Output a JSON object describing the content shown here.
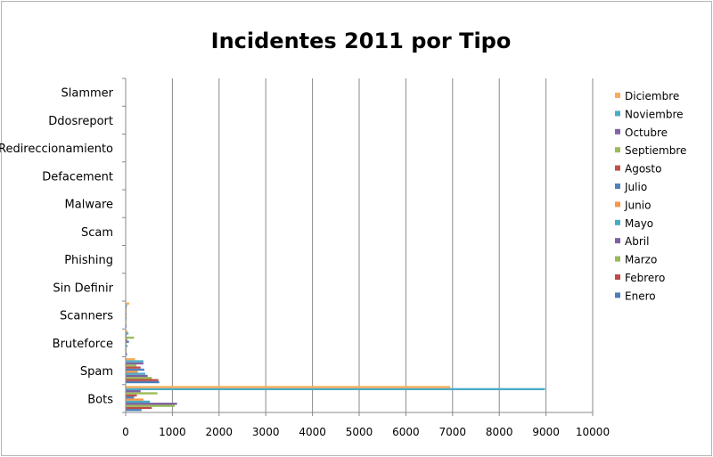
{
  "chart_data": {
    "type": "bar",
    "orientation": "horizontal",
    "title": "Incidentes 2011 por Tipo",
    "xlim": [
      0,
      10000
    ],
    "x_ticks": [
      "0",
      "1000",
      "2000",
      "3000",
      "4000",
      "5000",
      "6000",
      "7000",
      "8000",
      "9000",
      "10000"
    ],
    "grid": "vertical",
    "legend_position": "right",
    "categories": [
      "Bots",
      "Spam",
      "Bruteforce",
      "Scanners",
      "Sin Definir",
      "Phishing",
      "Scam",
      "Malware",
      "Defacement",
      "Redireccionamiento",
      "Ddosreport",
      "Slammer"
    ],
    "series": [
      {
        "name": "Enero",
        "color": "#4a7ebb",
        "values": [
          340,
          720,
          30,
          20,
          0,
          0,
          0,
          0,
          0,
          0,
          0,
          0
        ]
      },
      {
        "name": "Febrero",
        "color": "#be4b48",
        "values": [
          560,
          700,
          15,
          15,
          0,
          0,
          0,
          0,
          0,
          0,
          0,
          0
        ]
      },
      {
        "name": "Marzo",
        "color": "#98b954",
        "values": [
          1050,
          560,
          20,
          15,
          0,
          0,
          0,
          0,
          0,
          0,
          0,
          0
        ]
      },
      {
        "name": "Abril",
        "color": "#7d60a0",
        "values": [
          1100,
          470,
          15,
          15,
          0,
          0,
          0,
          0,
          0,
          0,
          0,
          0
        ]
      },
      {
        "name": "Mayo",
        "color": "#46aac5",
        "values": [
          520,
          420,
          40,
          20,
          0,
          0,
          0,
          0,
          0,
          0,
          0,
          0
        ]
      },
      {
        "name": "Junio",
        "color": "#f79646",
        "values": [
          380,
          260,
          20,
          20,
          0,
          0,
          0,
          0,
          0,
          0,
          0,
          0
        ]
      },
      {
        "name": "Julio",
        "color": "#4f81bd",
        "values": [
          180,
          400,
          70,
          20,
          0,
          0,
          0,
          0,
          0,
          0,
          0,
          0
        ]
      },
      {
        "name": "Agosto",
        "color": "#c0504d",
        "values": [
          240,
          320,
          30,
          15,
          0,
          0,
          0,
          0,
          0,
          0,
          0,
          0
        ]
      },
      {
        "name": "Septiembre",
        "color": "#9bbb59",
        "values": [
          680,
          230,
          180,
          20,
          0,
          0,
          0,
          0,
          0,
          0,
          0,
          0
        ]
      },
      {
        "name": "Octubre",
        "color": "#8064a2",
        "values": [
          320,
          380,
          20,
          20,
          0,
          0,
          0,
          0,
          0,
          0,
          0,
          0
        ]
      },
      {
        "name": "Noviembre",
        "color": "#4bacc6",
        "values": [
          8980,
          380,
          60,
          30,
          0,
          0,
          0,
          0,
          0,
          0,
          0,
          0
        ]
      },
      {
        "name": "Diciembre",
        "color": "#f9ac5c",
        "values": [
          6950,
          200,
          40,
          80,
          0,
          0,
          0,
          0,
          0,
          0,
          0,
          0
        ]
      }
    ]
  }
}
